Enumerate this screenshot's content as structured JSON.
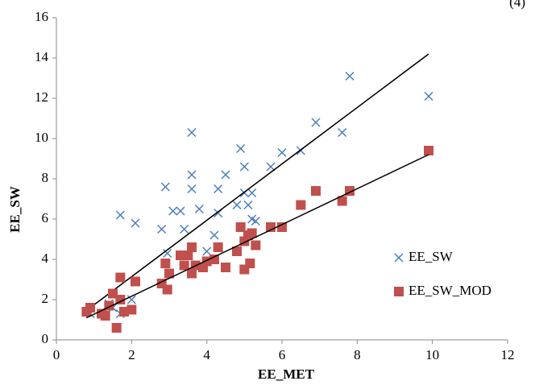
{
  "chart_data": {
    "type": "scatter",
    "equation_number": "(4)",
    "x_label": "EE_MET",
    "y_label": "EE_SW",
    "xlim": [
      0,
      12
    ],
    "xticks": [
      0,
      2,
      4,
      6,
      8,
      10,
      12
    ],
    "ylim": [
      0,
      16
    ],
    "yticks": [
      0,
      2,
      4,
      6,
      8,
      10,
      12,
      14,
      16
    ],
    "grid": false,
    "legend": "right",
    "series": [
      {
        "name": "EE_SW",
        "color": "#4a7ebb",
        "marker": "x",
        "x": [
          0.9,
          1.4,
          1.5,
          1.7,
          1.7,
          2.0,
          2.1,
          2.8,
          2.9,
          2.95,
          3.1,
          3.3,
          3.4,
          3.6,
          3.6,
          3.6,
          3.8,
          4.0,
          4.2,
          4.3,
          4.3,
          4.5,
          4.8,
          4.9,
          5.0,
          5.0,
          5.1,
          5.2,
          5.2,
          5.3,
          5.7,
          6.0,
          6.5,
          6.9,
          7.6,
          7.8,
          9.9
        ],
        "y": [
          1.3,
          1.8,
          1.6,
          6.2,
          1.3,
          2.0,
          5.8,
          5.5,
          7.6,
          4.3,
          6.4,
          6.4,
          5.5,
          10.3,
          8.2,
          7.5,
          6.5,
          4.4,
          5.2,
          7.5,
          6.3,
          8.2,
          6.7,
          9.5,
          8.6,
          7.3,
          6.7,
          7.3,
          6.0,
          5.9,
          8.6,
          9.3,
          9.4,
          10.8,
          10.3,
          13.1,
          12.1
        ],
        "trend": {
          "x": [
            0.9,
            9.9
          ],
          "y": [
            1.6,
            14.2
          ]
        }
      },
      {
        "name": "EE_SW_MOD",
        "color": "#c0504d",
        "marker": "square",
        "x": [
          0.8,
          0.9,
          1.2,
          1.3,
          1.4,
          1.5,
          1.6,
          1.7,
          1.7,
          1.8,
          2.0,
          2.1,
          2.8,
          2.9,
          2.95,
          3.0,
          3.3,
          3.4,
          3.5,
          3.6,
          3.6,
          3.7,
          3.9,
          4.0,
          4.2,
          4.3,
          4.5,
          4.8,
          4.9,
          5.0,
          5.0,
          5.1,
          5.2,
          5.15,
          5.3,
          5.7,
          6.0,
          6.5,
          6.9,
          7.6,
          7.8,
          9.9
        ],
        "y": [
          1.4,
          1.6,
          1.3,
          1.2,
          1.7,
          2.3,
          0.6,
          3.1,
          2.0,
          1.4,
          1.5,
          2.9,
          2.8,
          3.8,
          2.5,
          3.3,
          4.2,
          3.7,
          4.2,
          4.6,
          3.3,
          3.7,
          3.6,
          3.9,
          4.0,
          4.6,
          3.6,
          4.4,
          5.6,
          3.5,
          4.9,
          5.2,
          5.3,
          3.8,
          4.7,
          5.6,
          5.6,
          6.7,
          7.4,
          6.9,
          7.4,
          9.4
        ],
        "trend": {
          "x": [
            0.8,
            9.9
          ],
          "y": [
            1.1,
            9.2
          ]
        }
      }
    ]
  }
}
